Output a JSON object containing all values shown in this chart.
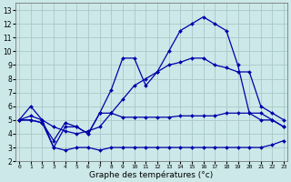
{
  "xlabel": "Graphe des températures (°c)",
  "bg_color": "#cce8e8",
  "grid_color": "#aac8c8",
  "line_color": "#0000aa",
  "xlim": [
    0,
    23
  ],
  "ylim": [
    2,
    13.5
  ],
  "xticks": [
    0,
    1,
    2,
    3,
    4,
    5,
    6,
    7,
    8,
    9,
    10,
    11,
    12,
    13,
    14,
    15,
    16,
    17,
    18,
    19,
    20,
    21,
    22,
    23
  ],
  "yticks": [
    2,
    3,
    4,
    5,
    6,
    7,
    8,
    9,
    10,
    11,
    12,
    13
  ],
  "line1_x": [
    0,
    1,
    2,
    3,
    4,
    5,
    6,
    7,
    8,
    9,
    10,
    11,
    12,
    13,
    14,
    15,
    16,
    17,
    18,
    19,
    20,
    21,
    22,
    23
  ],
  "line1_y": [
    5.0,
    6.0,
    5.0,
    3.0,
    4.5,
    4.5,
    4.0,
    5.5,
    7.2,
    9.5,
    9.5,
    7.5,
    8.5,
    10.0,
    11.5,
    12.0,
    12.5,
    12.0,
    11.5,
    9.0,
    5.5,
    5.0,
    5.0,
    4.5
  ],
  "line2_x": [
    0,
    1,
    2,
    3,
    4,
    5,
    6,
    7,
    8,
    9,
    10,
    11,
    12,
    13,
    14,
    15,
    16,
    17,
    18,
    19,
    20,
    21,
    22,
    23
  ],
  "line2_y": [
    5.0,
    5.0,
    4.8,
    3.0,
    2.8,
    3.0,
    3.0,
    2.8,
    3.0,
    3.0,
    3.0,
    3.0,
    3.0,
    3.0,
    3.0,
    3.0,
    3.0,
    3.0,
    3.0,
    3.0,
    3.0,
    3.0,
    3.2,
    3.5
  ],
  "line3_x": [
    0,
    1,
    2,
    3,
    4,
    5,
    6,
    7,
    8,
    9,
    10,
    11,
    12,
    13,
    14,
    15,
    16,
    17,
    18,
    19,
    20,
    21,
    22,
    23
  ],
  "line3_y": [
    5.0,
    5.0,
    4.8,
    3.5,
    4.8,
    4.5,
    4.0,
    5.5,
    5.5,
    5.2,
    5.2,
    5.2,
    5.2,
    5.2,
    5.3,
    5.3,
    5.3,
    5.3,
    5.5,
    5.5,
    5.5,
    5.5,
    5.0,
    4.5
  ],
  "line4_x": [
    0,
    1,
    2,
    3,
    4,
    5,
    6,
    7,
    8,
    9,
    10,
    11,
    12,
    13,
    14,
    15,
    16,
    17,
    18,
    19,
    20,
    21,
    22,
    23
  ],
  "line4_y": [
    5.0,
    5.3,
    5.0,
    4.5,
    4.2,
    4.0,
    4.2,
    4.5,
    5.5,
    6.5,
    7.5,
    8.0,
    8.5,
    9.0,
    9.2,
    9.5,
    9.5,
    9.0,
    8.8,
    8.5,
    8.5,
    6.0,
    5.5,
    5.0
  ]
}
